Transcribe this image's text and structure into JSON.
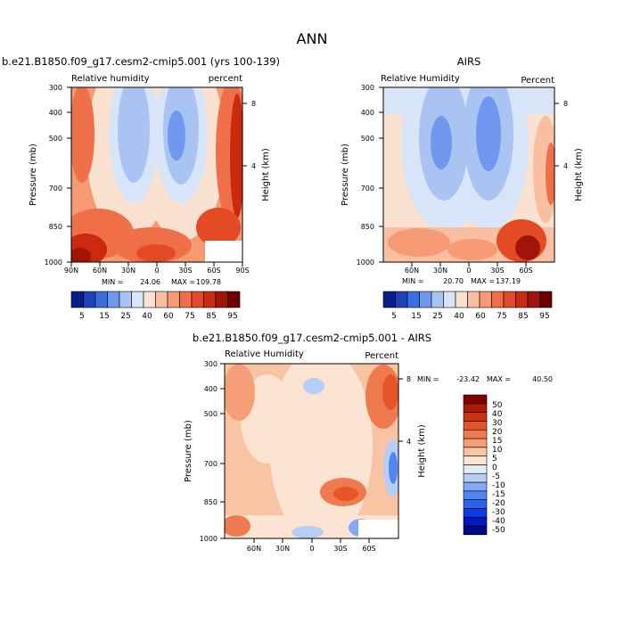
{
  "supertitle": "ANN",
  "colors": {
    "rh_scale": [
      "#081d8c",
      "#1f3fbd",
      "#3a6ee0",
      "#6f98ee",
      "#a9c4f3",
      "#d8e5f8",
      "#fbe1d0",
      "#f9bfa0",
      "#f59a73",
      "#ef7048",
      "#e34a25",
      "#c92a10",
      "#a01505",
      "#6b0000"
    ],
    "diff_scale": [
      "#000a80",
      "#0018c4",
      "#0d3be6",
      "#2963ee",
      "#4f86f1",
      "#82a9f3",
      "#b6cdf5",
      "#e2ebf8",
      "#fde4d2",
      "#f9c3a4",
      "#f59f79",
      "#f07a50",
      "#e65527",
      "#cc3310",
      "#aa1b05",
      "#800000"
    ]
  },
  "chart_data": [
    {
      "id": "model",
      "type": "heatmap",
      "title": "b.e21.B1850.f09_g17.cesm2-cmip5.001 (yrs 100-139)",
      "left_label": "Relative humidity",
      "right_label": "percent",
      "ylabel": "Pressure (mb)",
      "y2label": "Height (km)",
      "yticks": [
        "300",
        "400",
        "500",
        "700",
        "850",
        "1000"
      ],
      "y2ticks": [
        "8",
        "4"
      ],
      "xticks": [
        "90N",
        "60N",
        "30N",
        "0",
        "30S",
        "60S",
        "90S"
      ],
      "min_label": "MIN =",
      "min": "24.06",
      "max_label": "MAX =",
      "max": "109.78",
      "legend": [
        "5",
        "15",
        "25",
        "40",
        "60",
        "75",
        "85",
        "95"
      ]
    },
    {
      "id": "obs",
      "type": "heatmap",
      "title": "AIRS",
      "left_label": "Relative Humidity",
      "right_label": "Percent",
      "ylabel": "Pressure (mb)",
      "y2label": "Height (km)",
      "yticks": [
        "300",
        "400",
        "500",
        "700",
        "850",
        "1000"
      ],
      "y2ticks": [
        "8",
        "4"
      ],
      "xticks": [
        "60N",
        "30N",
        "0",
        "30S",
        "60S"
      ],
      "min_label": "MIN =",
      "min": "20.70",
      "max_label": "MAX =",
      "max": "137.19",
      "legend": [
        "5",
        "15",
        "25",
        "40",
        "60",
        "75",
        "85",
        "95"
      ]
    },
    {
      "id": "diff",
      "type": "heatmap",
      "title": "b.e21.B1850.f09_g17.cesm2-cmip5.001 - AIRS",
      "left_label": "Relative Humidity",
      "right_label": "Percent",
      "ylabel": "Pressure (mb)",
      "y2label": "Height (km)",
      "yticks": [
        "300",
        "400",
        "500",
        "700",
        "850",
        "1000"
      ],
      "y2ticks": [
        "8",
        "4"
      ],
      "xticks": [
        "60N",
        "30N",
        "0",
        "30S",
        "60S"
      ],
      "min_label": "MIN =",
      "min": "-23.42",
      "max_label": "MAX =",
      "max": "40.50",
      "legend": [
        "50",
        "40",
        "30",
        "20",
        "15",
        "10",
        "5",
        "0",
        "-5",
        "-10",
        "-15",
        "-20",
        "-30",
        "-40",
        "-50"
      ]
    }
  ]
}
